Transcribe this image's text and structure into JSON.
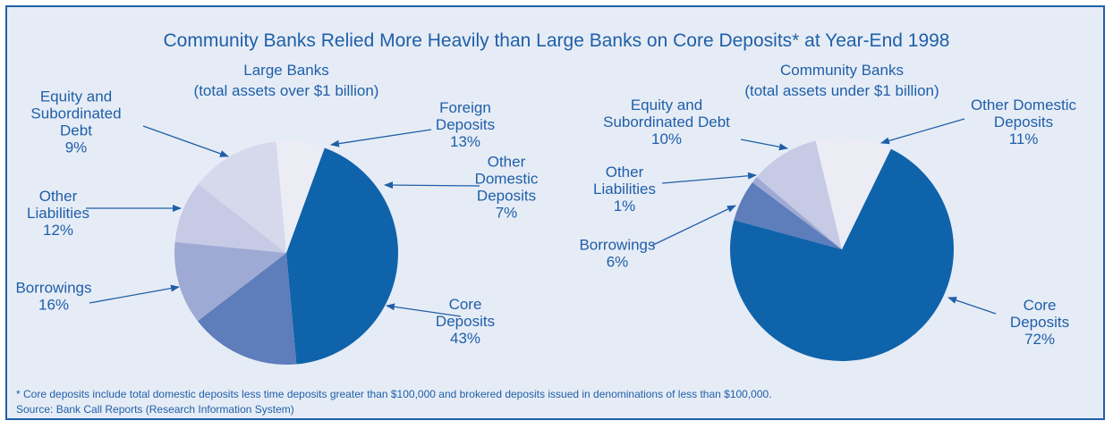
{
  "title": "Community Banks Relied More Heavily than Large Banks on Core Deposits* at Year-End 1998",
  "footnote": "* Core deposits include total domestic deposits less time deposits greater than $100,000 and brokered deposits issued in denominations of less than $100,000.",
  "source": "Source: Bank Call Reports (Research Information System)",
  "colors": {
    "text": "#1f5fa8",
    "background": "#e6ecf6",
    "core_deposits": "#0f63ab",
    "borrowings": "#5d7dbb",
    "other_liabilities": "#9eaad4",
    "equity_debt": "#c6cae4",
    "foreign_deposits": "#d6d9ec",
    "other_domestic": "#ececf5"
  },
  "chart_data": [
    {
      "type": "pie",
      "title": "Large Banks",
      "subtitle": "(total assets over $1 billion)",
      "slices": [
        {
          "label": [
            "Core",
            "Deposits"
          ],
          "value_label": "43%",
          "value": 43,
          "color_key": "core_deposits"
        },
        {
          "label": [
            "Borrowings"
          ],
          "value_label": "16%",
          "value": 16,
          "color_key": "borrowings"
        },
        {
          "label": [
            "Other",
            "Liabilities"
          ],
          "value_label": "12%",
          "value": 12,
          "color_key": "other_liabilities"
        },
        {
          "label": [
            "Equity and",
            "Subordinated",
            "Debt"
          ],
          "value_label": "9%",
          "value": 9,
          "color_key": "equity_debt"
        },
        {
          "label": [
            "Foreign",
            "Deposits"
          ],
          "value_label": "13%",
          "value": 13,
          "color_key": "foreign_deposits"
        },
        {
          "label": [
            "Other",
            "Domestic",
            "Deposits"
          ],
          "value_label": "7%",
          "value": 7,
          "color_key": "other_domestic"
        }
      ]
    },
    {
      "type": "pie",
      "title": "Community Banks",
      "subtitle": "(total assets under $1 billion)",
      "slices": [
        {
          "label": [
            "Core",
            "Deposits"
          ],
          "value_label": "72%",
          "value": 72,
          "color_key": "core_deposits"
        },
        {
          "label": [
            "Borrowings"
          ],
          "value_label": "6%",
          "value": 6,
          "color_key": "borrowings"
        },
        {
          "label": [
            "Other",
            "Liabilities"
          ],
          "value_label": "1%",
          "value": 1,
          "color_key": "other_liabilities"
        },
        {
          "label": [
            "Equity and",
            "Subordinated Debt"
          ],
          "value_label": "10%",
          "value": 10,
          "color_key": "equity_debt"
        },
        {
          "label": [
            "Other Domestic",
            "Deposits"
          ],
          "value_label": "11%",
          "value": 11,
          "color_key": "other_domestic"
        }
      ]
    }
  ]
}
